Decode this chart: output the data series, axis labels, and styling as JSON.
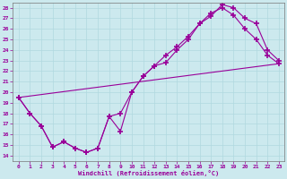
{
  "xlabel": "Windchill (Refroidissement éolien,°C)",
  "xlim": [
    -0.5,
    23.5
  ],
  "ylim": [
    13.5,
    28.5
  ],
  "xticks": [
    0,
    1,
    2,
    3,
    4,
    5,
    6,
    7,
    8,
    9,
    10,
    11,
    12,
    13,
    14,
    15,
    16,
    17,
    18,
    19,
    20,
    21,
    22,
    23
  ],
  "yticks": [
    14,
    15,
    16,
    17,
    18,
    19,
    20,
    21,
    22,
    23,
    24,
    25,
    26,
    27,
    28
  ],
  "line_color": "#990099",
  "bg_color": "#cce9ee",
  "grid_color": "#b0d8df",
  "line1_x": [
    0,
    1,
    2,
    3,
    4,
    5,
    6,
    7,
    8,
    9,
    10,
    11,
    12,
    13,
    14,
    15,
    16,
    17,
    18,
    19,
    20,
    21,
    22,
    23
  ],
  "line1_y": [
    19.5,
    18.0,
    16.8,
    14.8,
    15.3,
    14.7,
    14.3,
    14.7,
    17.7,
    18.0,
    20.0,
    21.5,
    22.5,
    23.5,
    24.3,
    25.3,
    26.5,
    27.2,
    28.3,
    28.0,
    27.0,
    26.5,
    24.0,
    23.0
  ],
  "line2_x": [
    0,
    1,
    2,
    3,
    4,
    5,
    6,
    7,
    8,
    9,
    10,
    11,
    12,
    13,
    14,
    15,
    16,
    17,
    18,
    19,
    20,
    21,
    22,
    23
  ],
  "line2_y": [
    19.5,
    18.0,
    16.8,
    14.8,
    15.3,
    14.7,
    14.3,
    14.7,
    17.7,
    16.3,
    20.0,
    21.5,
    22.5,
    22.8,
    24.0,
    25.0,
    26.5,
    27.5,
    28.0,
    27.3,
    26.0,
    25.0,
    23.5,
    22.7
  ],
  "line3_x": [
    0,
    23
  ],
  "line3_y": [
    19.5,
    22.7
  ]
}
